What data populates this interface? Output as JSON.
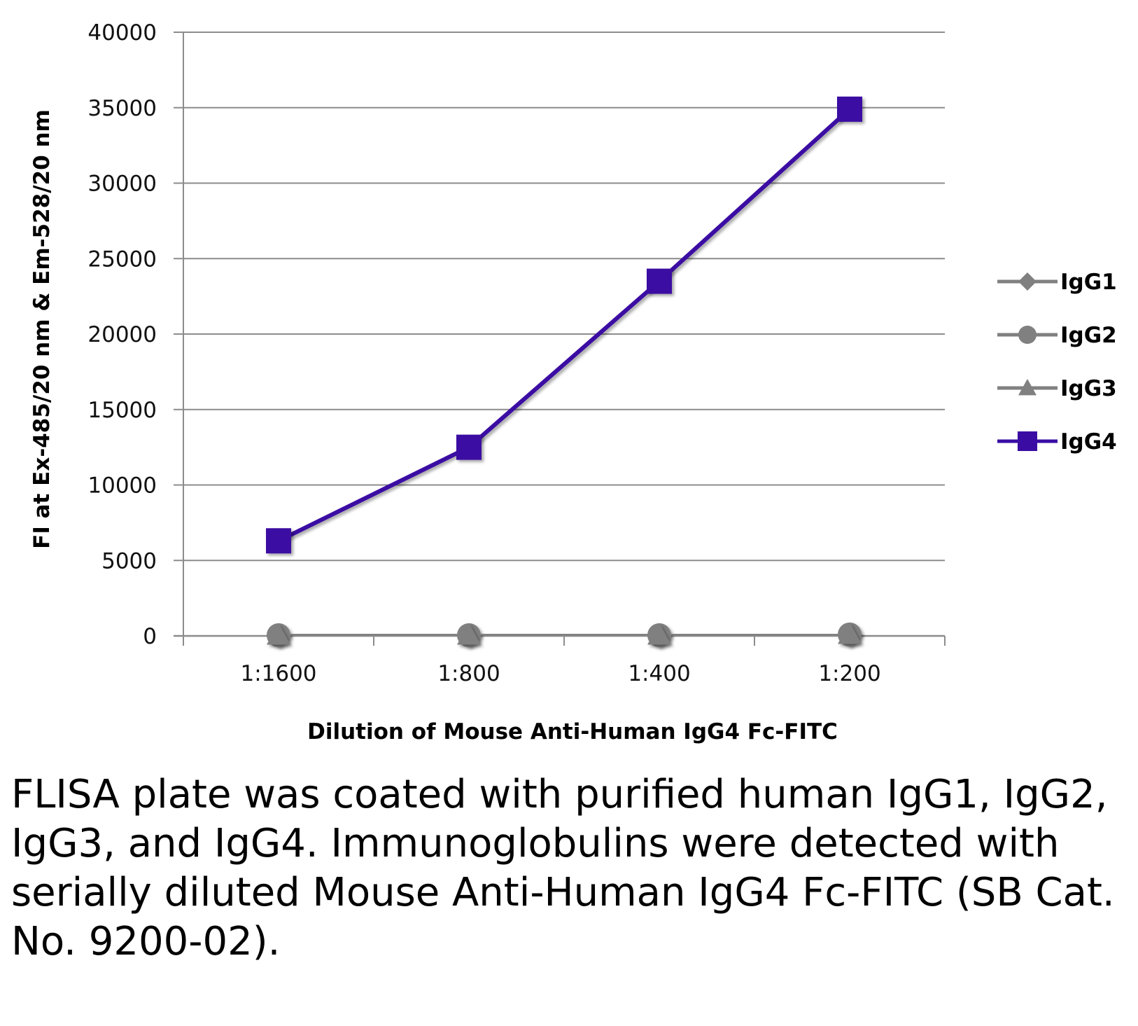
{
  "chart_data": {
    "type": "line",
    "title": "",
    "xlabel": "Dilution of Mouse Anti-Human IgG4 Fc-FITC",
    "ylabel": "FI at Ex-485/20 nm & Em-528/20 nm",
    "categories": [
      "1:1600",
      "1:800",
      "1:400",
      "1:200"
    ],
    "ylim": [
      0,
      40000
    ],
    "yticks": [
      0,
      5000,
      10000,
      15000,
      20000,
      25000,
      30000,
      35000,
      40000
    ],
    "grid": true,
    "legend_position": "right",
    "series": [
      {
        "name": "IgG1",
        "marker": "diamond",
        "color": "#808080",
        "values": [
          50,
          50,
          50,
          100
        ]
      },
      {
        "name": "IgG2",
        "marker": "circle",
        "color": "#808080",
        "values": [
          50,
          50,
          50,
          100
        ]
      },
      {
        "name": "IgG3",
        "marker": "triangle",
        "color": "#808080",
        "values": [
          50,
          50,
          50,
          100
        ]
      },
      {
        "name": "IgG4",
        "marker": "square",
        "color": "#3a0ca3",
        "values": [
          6300,
          12500,
          23500,
          34900
        ]
      }
    ]
  },
  "caption": "FLISA plate was coated with purified human IgG1, IgG2, IgG3, and IgG4.  Immunoglobulins were detected with serially diluted Mouse Anti-Human IgG4 Fc-FITC (SB Cat. No. 9200-02)."
}
